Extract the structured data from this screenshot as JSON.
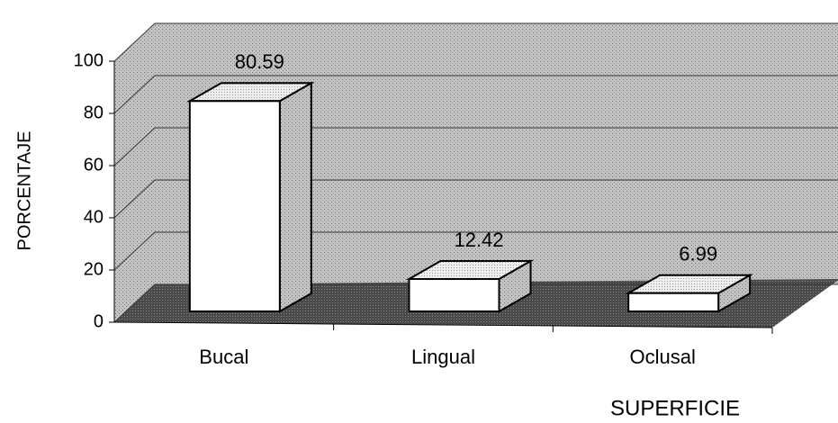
{
  "chart_data": {
    "type": "bar3d",
    "xlabel": "SUPERFICIE",
    "ylabel": "PORCENTAJE",
    "categories": [
      "Bucal",
      "Lingual",
      "Oclusal"
    ],
    "values": [
      80.59,
      12.42,
      6.99
    ],
    "color": "#ffffff",
    "ylim": [
      0,
      100
    ],
    "yticks": [
      0,
      20,
      40,
      60,
      80,
      100
    ],
    "grid": true
  }
}
